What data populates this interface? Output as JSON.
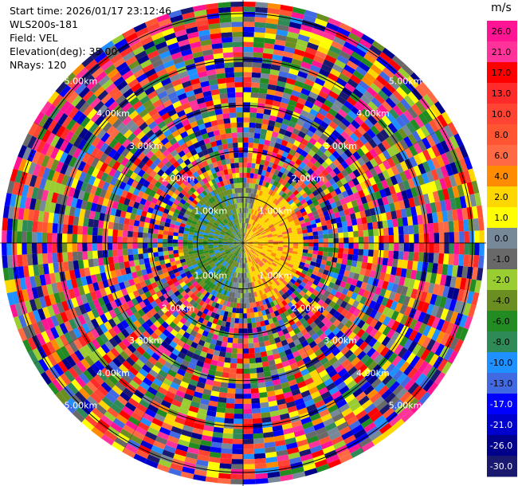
{
  "header": {
    "start_time": "Start time: 2026/01/17 23:12:46",
    "station": "WLS200s-181",
    "field": "Field: VEL",
    "elevation": "Elevation(deg): 35.00",
    "nrays": "NRays: 120"
  },
  "chart_data": {
    "type": "heatmap",
    "projection": "polar PPI",
    "field": "VEL",
    "nrays": 120,
    "range_rings_km": [
      1,
      2,
      3,
      4,
      5
    ],
    "ring_labels": [
      "1.00km",
      "2.00km",
      "3.00km",
      "4.00km",
      "5.00km"
    ],
    "colorbar": {
      "unit": "m/s",
      "ticks": [
        "26.0",
        "21.0",
        "17.0",
        "13.0",
        "10.0",
        "8.0",
        "6.0",
        "4.0",
        "2.0",
        "1.0",
        "0.0",
        "-1.0",
        "-2.0",
        "-4.0",
        "-6.0",
        "-8.0",
        "-10.0",
        "-13.0",
        "-17.0",
        "-21.0",
        "-26.0",
        "-30.0"
      ],
      "colors": [
        "#ff1493",
        "#ff3399",
        "#ff0000",
        "#ff2a2a",
        "#ff4433",
        "#ff5533",
        "#ff6a45",
        "#ff8c00",
        "#ffd700",
        "#ffff00",
        "#778899",
        "#696969",
        "#9acd32",
        "#6b8e23",
        "#228b22",
        "#2e8b57",
        "#1e90ff",
        "#4169e1",
        "#0000ff",
        "#0000cd",
        "#00008b",
        "#191970"
      ]
    }
  }
}
